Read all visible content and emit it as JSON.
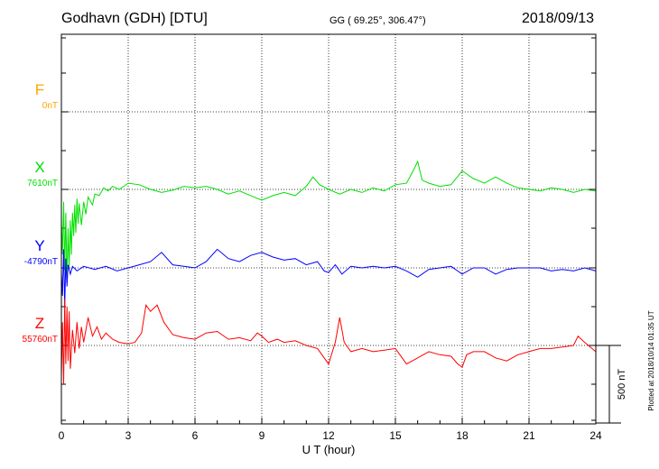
{
  "header": {
    "station": "Godhavn (GDH)  [DTU]",
    "coords": "GG ( 69.25°, 306.47°)",
    "date": "2018/09/13"
  },
  "footer": {
    "plotted": "Plotted at 2018/10/14 01:35 UT"
  },
  "chart_data": {
    "type": "line",
    "title": "",
    "xlabel": "U T (hour)",
    "ylabel": "",
    "xlim": [
      0,
      24
    ],
    "x_ticks": [
      0,
      3,
      6,
      9,
      12,
      15,
      18,
      21,
      24
    ],
    "x_tick_labels": [
      "0",
      "3",
      "6",
      "9",
      "12",
      "15",
      "18",
      "21",
      "24"
    ],
    "grid": true,
    "scale_bar": {
      "label": "500 nT",
      "value_nT": 500
    },
    "series": [
      {
        "name": "F",
        "baseline_label": "0nT",
        "color": "#ffa500",
        "points": []
      },
      {
        "name": "X",
        "baseline_label": "7610nT",
        "color": "#00e000",
        "points": [
          [
            0,
            -200
          ],
          [
            0.05,
            -420
          ],
          [
            0.1,
            -80
          ],
          [
            0.15,
            -520
          ],
          [
            0.2,
            -150
          ],
          [
            0.25,
            -600
          ],
          [
            0.3,
            -250
          ],
          [
            0.35,
            -500
          ],
          [
            0.4,
            -200
          ],
          [
            0.45,
            -420
          ],
          [
            0.5,
            -150
          ],
          [
            0.55,
            -300
          ],
          [
            0.6,
            -100
          ],
          [
            0.65,
            -280
          ],
          [
            0.7,
            -60
          ],
          [
            0.75,
            -220
          ],
          [
            0.8,
            -90
          ],
          [
            0.9,
            -230
          ],
          [
            1.0,
            -80
          ],
          [
            1.1,
            -160
          ],
          [
            1.2,
            -50
          ],
          [
            1.4,
            -100
          ],
          [
            1.5,
            -30
          ],
          [
            1.7,
            -40
          ],
          [
            1.9,
            10
          ],
          [
            2.1,
            -10
          ],
          [
            2.3,
            20
          ],
          [
            2.6,
            0
          ],
          [
            3.0,
            40
          ],
          [
            3.5,
            30
          ],
          [
            4.0,
            0
          ],
          [
            4.5,
            -20
          ],
          [
            5.0,
            -5
          ],
          [
            5.5,
            20
          ],
          [
            6.0,
            10
          ],
          [
            6.5,
            20
          ],
          [
            7.0,
            0
          ],
          [
            7.5,
            -30
          ],
          [
            8.0,
            -10
          ],
          [
            8.5,
            -40
          ],
          [
            9.0,
            -70
          ],
          [
            9.5,
            -40
          ],
          [
            10.0,
            -20
          ],
          [
            10.5,
            -40
          ],
          [
            11.0,
            20
          ],
          [
            11.3,
            80
          ],
          [
            11.6,
            30
          ],
          [
            12.0,
            0
          ],
          [
            12.5,
            -30
          ],
          [
            13.0,
            0
          ],
          [
            13.5,
            -20
          ],
          [
            14.0,
            10
          ],
          [
            14.5,
            -10
          ],
          [
            15.0,
            30
          ],
          [
            15.5,
            40
          ],
          [
            15.8,
            120
          ],
          [
            16.0,
            180
          ],
          [
            16.2,
            60
          ],
          [
            16.5,
            40
          ],
          [
            17.0,
            20
          ],
          [
            17.5,
            30
          ],
          [
            18.0,
            120
          ],
          [
            18.5,
            70
          ],
          [
            19.0,
            40
          ],
          [
            19.5,
            80
          ],
          [
            20.0,
            40
          ],
          [
            20.5,
            10
          ],
          [
            21.0,
            0
          ],
          [
            21.5,
            -10
          ],
          [
            22.0,
            10
          ],
          [
            22.5,
            0
          ],
          [
            23.0,
            -20
          ],
          [
            23.5,
            0
          ],
          [
            24.0,
            -10
          ]
        ]
      },
      {
        "name": "Y",
        "baseline_label": "-4790nT",
        "color": "#0000ff",
        "points": [
          [
            0,
            -30
          ],
          [
            0.05,
            -180
          ],
          [
            0.1,
            120
          ],
          [
            0.15,
            -250
          ],
          [
            0.2,
            60
          ],
          [
            0.25,
            -120
          ],
          [
            0.3,
            20
          ],
          [
            0.4,
            -40
          ],
          [
            0.5,
            10
          ],
          [
            0.7,
            -20
          ],
          [
            1.0,
            10
          ],
          [
            1.5,
            -10
          ],
          [
            2.0,
            10
          ],
          [
            2.5,
            -20
          ],
          [
            3.0,
            0
          ],
          [
            3.5,
            20
          ],
          [
            4.0,
            40
          ],
          [
            4.5,
            100
          ],
          [
            5.0,
            20
          ],
          [
            5.5,
            10
          ],
          [
            6.0,
            0
          ],
          [
            6.5,
            40
          ],
          [
            7.0,
            120
          ],
          [
            7.5,
            60
          ],
          [
            8.0,
            40
          ],
          [
            8.5,
            80
          ],
          [
            9.0,
            100
          ],
          [
            9.5,
            70
          ],
          [
            10.0,
            50
          ],
          [
            10.5,
            60
          ],
          [
            11.0,
            20
          ],
          [
            11.5,
            40
          ],
          [
            11.8,
            -20
          ],
          [
            12.0,
            -30
          ],
          [
            12.3,
            20
          ],
          [
            12.6,
            -40
          ],
          [
            13.0,
            10
          ],
          [
            13.5,
            0
          ],
          [
            14.0,
            10
          ],
          [
            14.5,
            0
          ],
          [
            15.0,
            10
          ],
          [
            15.5,
            -20
          ],
          [
            16.0,
            -60
          ],
          [
            16.5,
            -10
          ],
          [
            17.0,
            0
          ],
          [
            17.5,
            10
          ],
          [
            18.0,
            -40
          ],
          [
            18.5,
            0
          ],
          [
            19.0,
            0
          ],
          [
            19.5,
            -40
          ],
          [
            20.0,
            -10
          ],
          [
            20.5,
            0
          ],
          [
            21.0,
            0
          ],
          [
            21.5,
            0
          ],
          [
            22.0,
            -20
          ],
          [
            22.5,
            -10
          ],
          [
            23.0,
            -20
          ],
          [
            23.5,
            0
          ],
          [
            24.0,
            -20
          ]
        ]
      },
      {
        "name": "Z",
        "baseline_label": "55760nT",
        "color": "#ff0000",
        "points": [
          [
            0,
            -200
          ],
          [
            0.05,
            150
          ],
          [
            0.1,
            -250
          ],
          [
            0.15,
            300
          ],
          [
            0.2,
            -120
          ],
          [
            0.25,
            250
          ],
          [
            0.3,
            -100
          ],
          [
            0.35,
            220
          ],
          [
            0.4,
            -150
          ],
          [
            0.5,
            100
          ],
          [
            0.6,
            -50
          ],
          [
            0.7,
            150
          ],
          [
            0.8,
            -20
          ],
          [
            0.9,
            120
          ],
          [
            1.0,
            20
          ],
          [
            1.2,
            180
          ],
          [
            1.4,
            60
          ],
          [
            1.6,
            120
          ],
          [
            1.8,
            40
          ],
          [
            2.0,
            80
          ],
          [
            2.3,
            40
          ],
          [
            2.6,
            20
          ],
          [
            3.0,
            10
          ],
          [
            3.3,
            20
          ],
          [
            3.6,
            80
          ],
          [
            3.8,
            260
          ],
          [
            4.0,
            220
          ],
          [
            4.3,
            260
          ],
          [
            4.6,
            150
          ],
          [
            5.0,
            70
          ],
          [
            5.5,
            50
          ],
          [
            6.0,
            40
          ],
          [
            6.5,
            80
          ],
          [
            7.0,
            90
          ],
          [
            7.5,
            40
          ],
          [
            8.0,
            50
          ],
          [
            8.5,
            30
          ],
          [
            8.8,
            80
          ],
          [
            9.0,
            60
          ],
          [
            9.3,
            20
          ],
          [
            9.7,
            40
          ],
          [
            10.0,
            20
          ],
          [
            10.5,
            30
          ],
          [
            11.0,
            0
          ],
          [
            11.5,
            -20
          ],
          [
            11.8,
            -80
          ],
          [
            12.0,
            -120
          ],
          [
            12.3,
            20
          ],
          [
            12.5,
            180
          ],
          [
            12.7,
            20
          ],
          [
            13.0,
            -40
          ],
          [
            13.5,
            -20
          ],
          [
            14.0,
            -40
          ],
          [
            14.5,
            -30
          ],
          [
            15.0,
            -20
          ],
          [
            15.5,
            -120
          ],
          [
            16.0,
            -80
          ],
          [
            16.5,
            -40
          ],
          [
            17.0,
            -60
          ],
          [
            17.5,
            -70
          ],
          [
            17.8,
            -120
          ],
          [
            18.0,
            -140
          ],
          [
            18.2,
            -60
          ],
          [
            18.5,
            -40
          ],
          [
            19.0,
            -40
          ],
          [
            19.5,
            -80
          ],
          [
            20.0,
            -100
          ],
          [
            20.5,
            -60
          ],
          [
            21.0,
            -40
          ],
          [
            21.5,
            -20
          ],
          [
            22.0,
            -20
          ],
          [
            22.5,
            -10
          ],
          [
            23.0,
            0
          ],
          [
            23.2,
            60
          ],
          [
            23.5,
            20
          ],
          [
            24.0,
            -40
          ]
        ]
      }
    ]
  }
}
